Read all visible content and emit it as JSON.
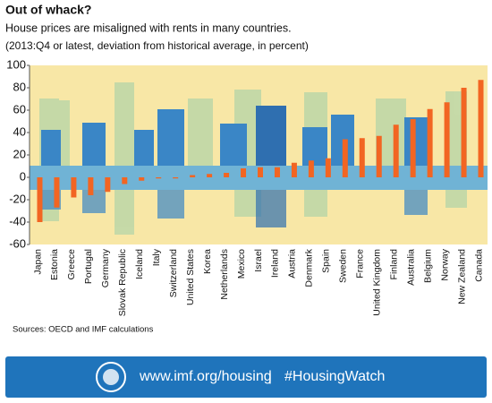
{
  "chart_data": {
    "type": "bar",
    "title": "Out of whack?",
    "subtitle": "House prices are misaligned with rents in many countries.",
    "note": "(2013:Q4 or latest, deviation from historical average, in percent)",
    "source": "Sources: OECD and IMF calculations",
    "categories": [
      "Japan",
      "Estonia",
      "Greece",
      "Portugal",
      "Germany",
      "Slovak Republic",
      "Iceland",
      "Italy",
      "Switzerland",
      "United States",
      "Korea",
      "Netherlands",
      "Mexico",
      "Israel",
      "Ireland",
      "Austria",
      "Denmark",
      "Spain",
      "Sweden",
      "France",
      "United Kingdom",
      "Finland",
      "Australia",
      "Belgium",
      "Norway",
      "New Zealand",
      "Canada"
    ],
    "values": [
      -40,
      -27,
      -18,
      -16,
      -13,
      -6,
      -3,
      -1,
      -1,
      2,
      3,
      4,
      8,
      9,
      9,
      13,
      15,
      17,
      34,
      35,
      37,
      47,
      52,
      61,
      67,
      80,
      87
    ],
    "color": "#f26522",
    "ylim": [
      -60,
      100
    ],
    "yticks": [
      -60,
      -40,
      -20,
      0,
      20,
      40,
      60,
      80,
      100
    ]
  },
  "footer": {
    "url": "www.imf.org/housing",
    "separator": "|",
    "hashtag": "#HousingWatch"
  }
}
